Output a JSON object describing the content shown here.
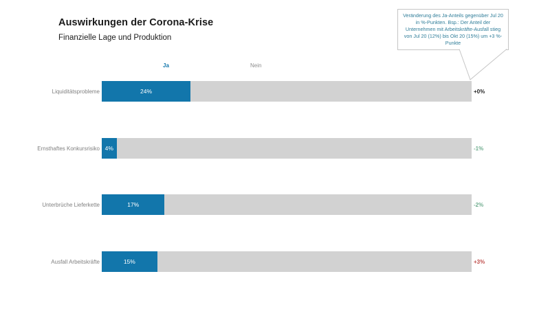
{
  "title": "Auswirkungen der Corona-Krise",
  "subtitle": "Finanzielle Lage und Produktion",
  "legend": {
    "ja": "Ja",
    "nein": "Nein"
  },
  "callout": {
    "lines": [
      "Veränderung des Ja-Anteils gegenüber Jul 20",
      "in %-Punkten. Bsp.: Der Anteil der",
      "Unternehmen mit Arbeitskräfte-Ausfall stieg",
      "von Jul 20 (12%) bis Okt 20 (15%) um +3 %-",
      "Punkte"
    ]
  },
  "colors": {
    "ja": "#1276ab",
    "nein": "#d2d2d2",
    "delta_positive": "#c0504d",
    "delta_negative": "#70ad8f",
    "delta_zero": "#262626",
    "callout_text": "#2f7d99",
    "callout_border": "#c5c5c5"
  },
  "chart_data": {
    "type": "bar",
    "orientation": "horizontal-stacked-100",
    "title": "Auswirkungen der Corona-Krise",
    "subtitle": "Finanzielle Lage und Produktion",
    "categories": [
      "Liquiditätsprobleme",
      "Ernsthaftes Konkursrisiko",
      "Unterbrüche Lieferkette",
      "Ausfall Arbeitskräfte"
    ],
    "series": [
      {
        "name": "Ja",
        "values": [
          24,
          4,
          17,
          15
        ]
      },
      {
        "name": "Nein",
        "values": [
          76,
          96,
          83,
          85
        ]
      }
    ],
    "bar_labels": [
      "24%",
      "4%",
      "17%",
      "15%"
    ],
    "delta_labels": [
      "+0%",
      "-1%",
      "-2%",
      "+3%"
    ],
    "legend_position": "top",
    "xlim": [
      0,
      100
    ],
    "grid": false,
    "annotation": "Veränderung des Ja-Anteils gegenüber Jul 20 in %-Punkten. Bsp.: Der Anteil der Unternehmen mit Arbeitskräfte-Ausfall stieg von Jul 20 (12%) bis Okt 20 (15%) um +3 %-Punkte"
  }
}
